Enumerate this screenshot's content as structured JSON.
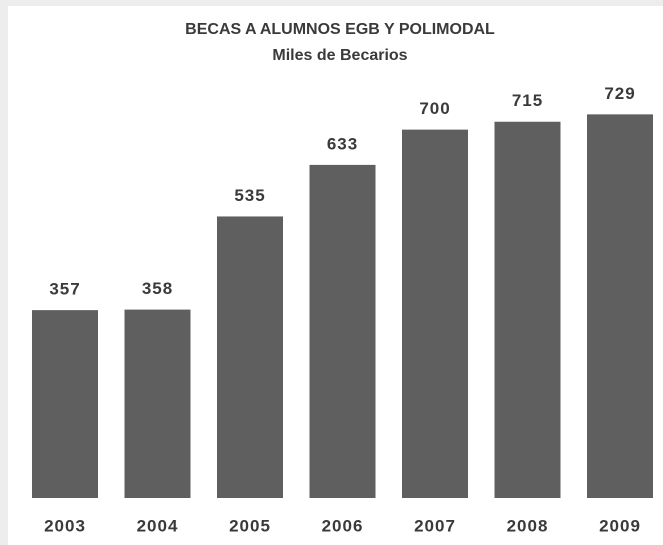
{
  "chart_data": {
    "type": "bar",
    "title": "BECAS A ALUMNOS EGB Y POLIMODAL",
    "subtitle": "Miles de Becarios",
    "categories": [
      "2003",
      "2004",
      "2005",
      "2006",
      "2007",
      "2008",
      "2009"
    ],
    "values": [
      357,
      358,
      535,
      633,
      700,
      715,
      729
    ],
    "color": "#5f5f5f",
    "ylim": [
      0,
      800
    ]
  }
}
